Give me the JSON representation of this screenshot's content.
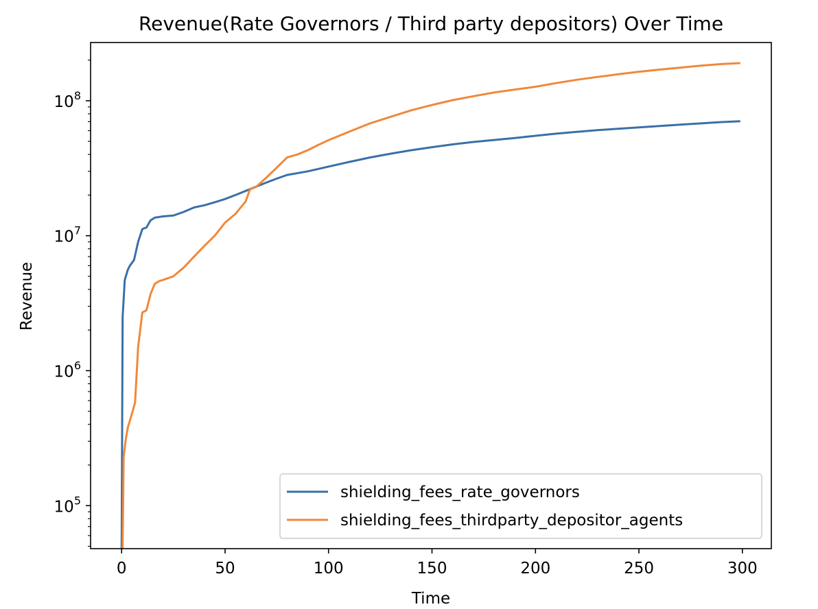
{
  "chart_data": {
    "type": "line",
    "title": "Revenue(Rate Governors / Third party depositors) Over Time",
    "xlabel": "Time",
    "ylabel": "Revenue",
    "yscale": "log",
    "xlim": [
      -15,
      314
    ],
    "ylim": [
      48000,
      270000000
    ],
    "xticks": [
      0,
      50,
      100,
      150,
      200,
      250,
      300
    ],
    "yticks": [
      {
        "value": 100000,
        "base": "10",
        "exp": "5"
      },
      {
        "value": 1000000,
        "base": "10",
        "exp": "6"
      },
      {
        "value": 10000000,
        "base": "10",
        "exp": "7"
      },
      {
        "value": 100000000,
        "base": "10",
        "exp": "8"
      }
    ],
    "grid": false,
    "legend_position": "lower-right",
    "series": [
      {
        "name": "shielding_fees_rate_governors",
        "color": "#3a6fa8",
        "points": [
          [
            0,
            40000
          ],
          [
            0.5,
            2500000
          ],
          [
            1.5,
            4700000
          ],
          [
            3,
            5600000
          ],
          [
            4,
            6000000
          ],
          [
            6,
            6600000
          ],
          [
            8,
            9000000
          ],
          [
            10,
            11200000
          ],
          [
            12,
            11500000
          ],
          [
            14,
            13000000
          ],
          [
            16,
            13600000
          ],
          [
            20,
            13900000
          ],
          [
            25,
            14100000
          ],
          [
            30,
            15000000
          ],
          [
            35,
            16200000
          ],
          [
            40,
            16800000
          ],
          [
            45,
            17700000
          ],
          [
            50,
            18700000
          ],
          [
            55,
            20000000
          ],
          [
            60,
            21500000
          ],
          [
            65,
            23100000
          ],
          [
            70,
            24800000
          ],
          [
            75,
            26500000
          ],
          [
            80,
            28200000
          ],
          [
            90,
            30000000
          ],
          [
            100,
            32500000
          ],
          [
            110,
            35200000
          ],
          [
            120,
            38000000
          ],
          [
            130,
            40500000
          ],
          [
            140,
            43000000
          ],
          [
            150,
            45300000
          ],
          [
            160,
            47500000
          ],
          [
            170,
            49500000
          ],
          [
            180,
            51200000
          ],
          [
            190,
            53000000
          ],
          [
            200,
            55000000
          ],
          [
            210,
            57000000
          ],
          [
            220,
            58800000
          ],
          [
            230,
            60500000
          ],
          [
            240,
            62000000
          ],
          [
            250,
            63500000
          ],
          [
            260,
            65000000
          ],
          [
            270,
            66500000
          ],
          [
            280,
            68000000
          ],
          [
            290,
            69500000
          ],
          [
            299,
            70500000
          ]
        ]
      },
      {
        "name": "shielding_fees_thirdparty_depositor_agents",
        "color": "#f0883a",
        "points": [
          [
            0,
            30000
          ],
          [
            0.5,
            50000
          ],
          [
            1,
            230000
          ],
          [
            2,
            310000
          ],
          [
            3,
            380000
          ],
          [
            5,
            480000
          ],
          [
            6.5,
            580000
          ],
          [
            8,
            1500000
          ],
          [
            10,
            2700000
          ],
          [
            12,
            2800000
          ],
          [
            14,
            3700000
          ],
          [
            16,
            4400000
          ],
          [
            18,
            4600000
          ],
          [
            20,
            4700000
          ],
          [
            25,
            5000000
          ],
          [
            30,
            5800000
          ],
          [
            35,
            7000000
          ],
          [
            40,
            8400000
          ],
          [
            45,
            10000000
          ],
          [
            50,
            12500000
          ],
          [
            55,
            14500000
          ],
          [
            60,
            18000000
          ],
          [
            62,
            22000000
          ],
          [
            65,
            23000000
          ],
          [
            70,
            27000000
          ],
          [
            75,
            32000000
          ],
          [
            80,
            38000000
          ],
          [
            85,
            40000000
          ],
          [
            90,
            43000000
          ],
          [
            95,
            47000000
          ],
          [
            100,
            51000000
          ],
          [
            110,
            59000000
          ],
          [
            120,
            68000000
          ],
          [
            130,
            76000000
          ],
          [
            140,
            85000000
          ],
          [
            150,
            93000000
          ],
          [
            160,
            101000000
          ],
          [
            170,
            108000000
          ],
          [
            180,
            115000000
          ],
          [
            190,
            121000000
          ],
          [
            200,
            127000000
          ],
          [
            210,
            135000000
          ],
          [
            220,
            143000000
          ],
          [
            230,
            150000000
          ],
          [
            240,
            157000000
          ],
          [
            250,
            164000000
          ],
          [
            260,
            170000000
          ],
          [
            270,
            176000000
          ],
          [
            280,
            182000000
          ],
          [
            290,
            187000000
          ],
          [
            299,
            190000000
          ]
        ]
      }
    ]
  }
}
